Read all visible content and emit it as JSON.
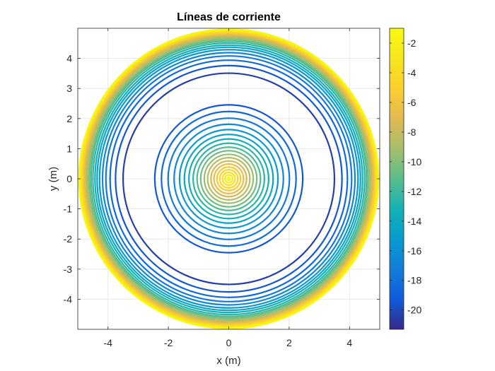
{
  "chart_data": {
    "type": "contour",
    "title": "Líneas de corriente",
    "xlabel": "x (m)",
    "ylabel": "y (m)",
    "xlim": [
      -5,
      5
    ],
    "ylim": [
      -5,
      5
    ],
    "x_ticks": [
      -4,
      -2,
      0,
      2,
      4
    ],
    "y_ticks": [
      -4,
      -3,
      -2,
      -1,
      0,
      1,
      2,
      3,
      4
    ],
    "grid": true,
    "colormap": "parula",
    "colorbar": {
      "position": "right",
      "range": [
        -21.3,
        -1.0
      ],
      "ticks": [
        -2,
        -4,
        -6,
        -8,
        -10,
        -12,
        -14,
        -16,
        -18,
        -20
      ]
    },
    "contours": {
      "center": [
        0,
        0
      ],
      "inner_radii": [
        0.05,
        0.13,
        0.21,
        0.3,
        0.39,
        0.49,
        0.59,
        0.7,
        0.81,
        0.93,
        1.05,
        1.18,
        1.32,
        1.47,
        1.63,
        1.81,
        2.01,
        2.23,
        2.45
      ],
      "inner_levels": [
        -1.5,
        -2.5,
        -3.5,
        -4.5,
        -5.5,
        -6.5,
        -7.5,
        -8.5,
        -9.5,
        -10.5,
        -11.5,
        -12.5,
        -13.5,
        -14.5,
        -15.5,
        -16.5,
        -17.5,
        -18.5,
        -19.5
      ],
      "outer_radii": [
        3.5,
        3.75,
        3.93,
        4.07,
        4.18,
        4.28,
        4.36,
        4.43,
        4.5,
        4.56,
        4.61,
        4.66,
        4.71,
        4.75,
        4.79,
        4.83,
        4.86,
        4.89,
        4.92,
        4.94,
        4.96
      ],
      "outer_levels": [
        -20.5,
        -19.5,
        -18.5,
        -17.5,
        -16.5,
        -15.5,
        -14.5,
        -13.5,
        -12.5,
        -11.5,
        -10.5,
        -9.5,
        -8.5,
        -7.5,
        -6.5,
        -5.5,
        -4.5,
        -3.5,
        -2.5,
        -2.0,
        -1.5
      ]
    }
  }
}
